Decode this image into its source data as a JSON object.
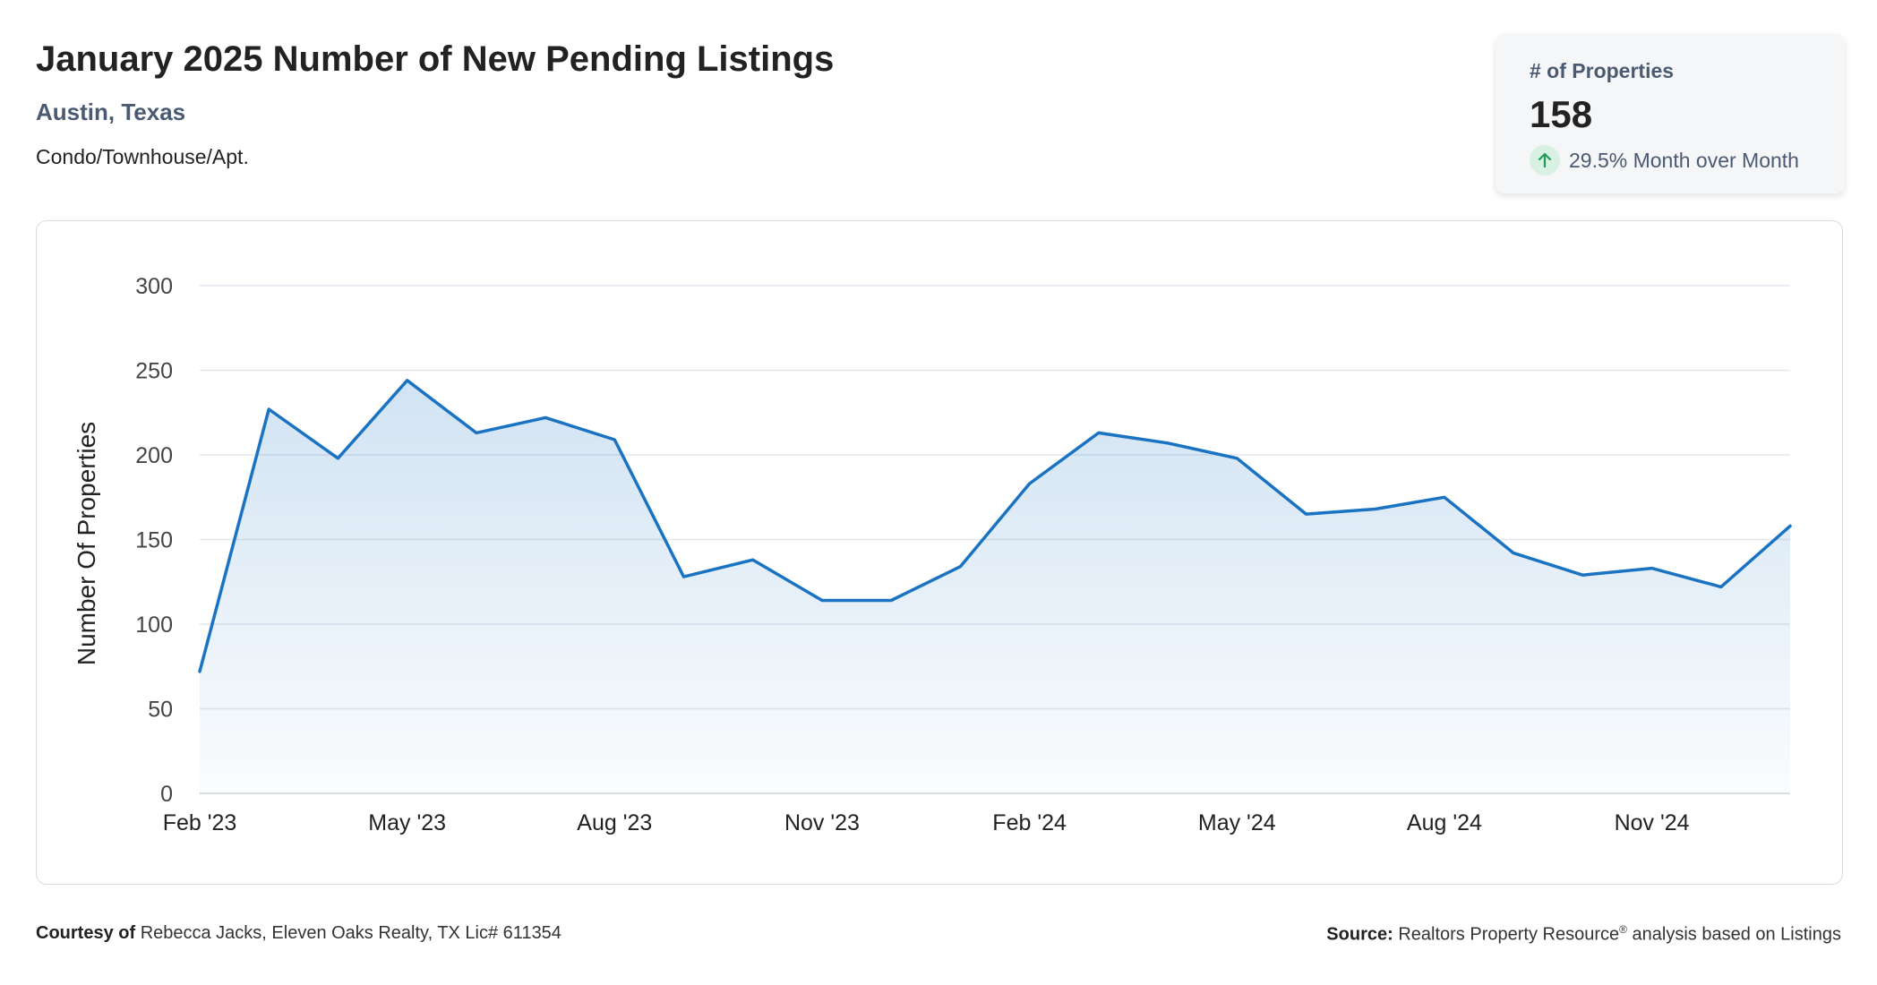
{
  "header": {
    "title": "January 2025 Number of New Pending Listings",
    "location": "Austin, Texas",
    "property_type": "Condo/Townhouse/Apt."
  },
  "kpi": {
    "label": "# of Properties",
    "value": "158",
    "change": "29.5% Month over Month",
    "direction_icon": "arrow-up-icon",
    "positive_color": "#1f9d55"
  },
  "chart_data": {
    "type": "area",
    "title": "",
    "xlabel": "",
    "ylabel": "Number Of Properties",
    "ylim": [
      0,
      300
    ],
    "yticks": [
      0,
      50,
      100,
      150,
      200,
      250,
      300
    ],
    "grid": true,
    "legend": "none",
    "line_color": "#1a73c2",
    "x": [
      "Feb '23",
      "Mar '23",
      "Apr '23",
      "May '23",
      "Jun '23",
      "Jul '23",
      "Aug '23",
      "Sep '23",
      "Oct '23",
      "Nov '23",
      "Dec '23",
      "Jan '24",
      "Feb '24",
      "Mar '24",
      "Apr '24",
      "May '24",
      "Jun '24",
      "Jul '24",
      "Aug '24",
      "Sep '24",
      "Oct '24",
      "Nov '24",
      "Dec '24",
      "Jan '25"
    ],
    "xtick_labels": [
      "Feb '23",
      "May '23",
      "Aug '23",
      "Nov '23",
      "Feb '24",
      "May '24",
      "Aug '24",
      "Nov '24"
    ],
    "series": [
      {
        "values": [
          72,
          227,
          198,
          244,
          213,
          222,
          209,
          128,
          138,
          114,
          114,
          134,
          183,
          213,
          207,
          198,
          165,
          168,
          175,
          142,
          129,
          133,
          122,
          158
        ]
      }
    ]
  },
  "footer": {
    "courtesy_label": "Courtesy of",
    "courtesy_text": "Rebecca Jacks, Eleven Oaks Realty, TX Lic# 611354",
    "source_label": "Source:",
    "source_text_pre": "Realtors Property Resource",
    "source_reg": "®",
    "source_text_post": " analysis based on Listings"
  }
}
